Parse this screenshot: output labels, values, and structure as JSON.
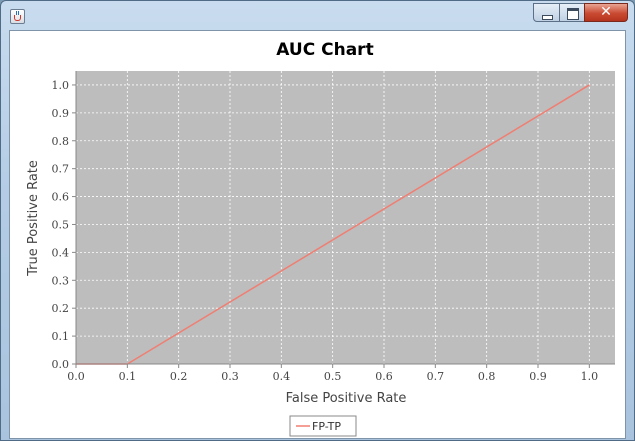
{
  "window": {
    "title": "",
    "controls": {
      "minimize_icon": "minimize-icon",
      "maximize_icon": "maximize-icon",
      "close_icon": "close-icon"
    }
  },
  "chart_data": {
    "type": "line",
    "title": "AUC Chart",
    "xlabel": "False Positive Rate",
    "ylabel": "True Positive Rate",
    "xlim": [
      0.0,
      1.05
    ],
    "ylim": [
      0.0,
      1.05
    ],
    "xticks": [
      "0.0",
      "0.1",
      "0.2",
      "0.3",
      "0.4",
      "0.5",
      "0.6",
      "0.7",
      "0.8",
      "0.9",
      "1.0"
    ],
    "yticks": [
      "0.0",
      "0.1",
      "0.2",
      "0.3",
      "0.4",
      "0.5",
      "0.6",
      "0.7",
      "0.8",
      "0.9",
      "1.0"
    ],
    "grid": true,
    "legend_position": "bottom-center",
    "colors": {
      "plot_background": "#bdbdbd",
      "series": "#f07e72",
      "grid": "#ffffff"
    },
    "series": [
      {
        "name": "FP-TP",
        "x": [
          0.0,
          0.1,
          1.0
        ],
        "y": [
          0.0,
          0.0,
          1.0
        ]
      }
    ]
  }
}
